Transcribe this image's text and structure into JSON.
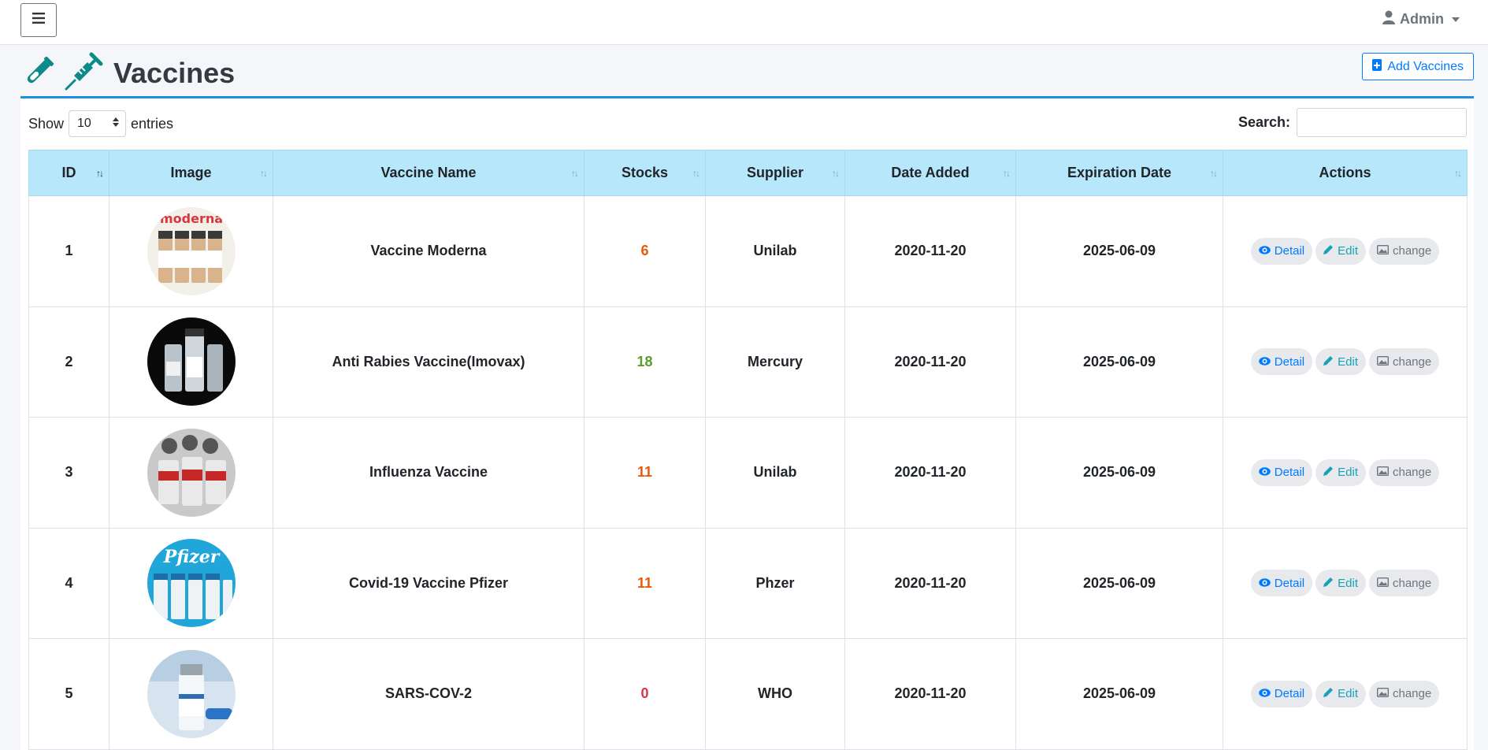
{
  "topbar": {
    "user_label": "Admin"
  },
  "header": {
    "title": "Vaccines",
    "add_label": "Add Vaccines"
  },
  "controls": {
    "show_label": "Show",
    "page_length": "10",
    "entries_label": "entries",
    "search_label": "Search:",
    "search_value": ""
  },
  "colors": {
    "accent": "#007bff",
    "header_bg": "#b7e7fb",
    "title_icon": "#0c8a8a",
    "stock_low": "#e8590c",
    "stock_ok": "#5b9b2f",
    "stock_zero": "#dc3545"
  },
  "table": {
    "headers": [
      "ID",
      "Image",
      "Vaccine Name",
      "Stocks",
      "Supplier",
      "Date Added",
      "Expiration Date",
      "Actions"
    ],
    "rows": [
      {
        "id": "1",
        "image": "moderna-vials",
        "name": "Vaccine Moderna",
        "stocks": "6",
        "stock_status": "low",
        "supplier": "Unilab",
        "date_added": "2020-11-20",
        "expiration": "2025-06-09"
      },
      {
        "id": "2",
        "image": "vaccine-vials-dark",
        "name": "Anti Rabies Vaccine(Imovax)",
        "stocks": "18",
        "stock_status": "ok",
        "supplier": "Mercury",
        "date_added": "2020-11-20",
        "expiration": "2025-06-09"
      },
      {
        "id": "3",
        "image": "covid-vials-red",
        "name": "Influenza Vaccine",
        "stocks": "11",
        "stock_status": "low",
        "supplier": "Unilab",
        "date_added": "2020-11-20",
        "expiration": "2025-06-09"
      },
      {
        "id": "4",
        "image": "pfizer-vials",
        "name": "Covid-19 Vaccine Pfizer",
        "stocks": "11",
        "stock_status": "low",
        "supplier": "Phzer",
        "date_added": "2020-11-20",
        "expiration": "2025-06-09"
      },
      {
        "id": "5",
        "image": "covid-19-vaccine-vial",
        "name": "SARS-COV-2",
        "stocks": "0",
        "stock_status": "zero",
        "supplier": "WHO",
        "date_added": "2020-11-20",
        "expiration": "2025-06-09"
      }
    ],
    "action_labels": {
      "detail": "Detail",
      "edit": "Edit",
      "change": "change"
    }
  }
}
